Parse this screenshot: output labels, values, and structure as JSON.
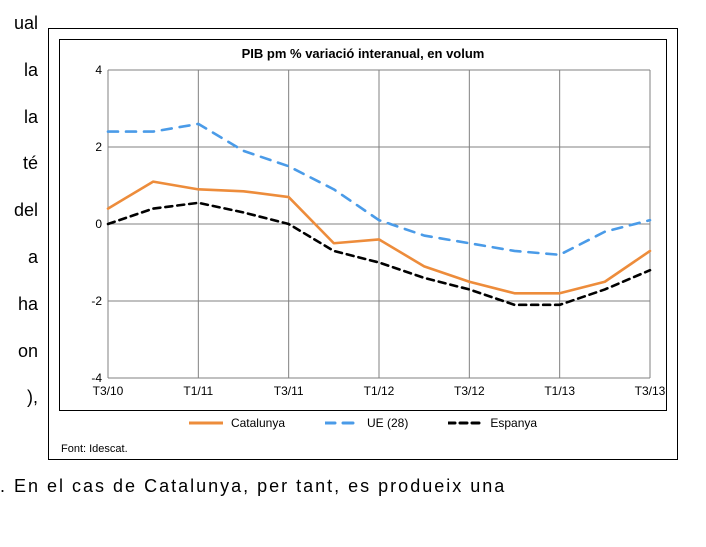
{
  "side_text": {
    "l1": "ual",
    "l2": "la",
    "l3": "la",
    "l4": "té",
    "l5": "del",
    "l6": "",
    "l7": "a",
    "l8": "ha",
    "l9": "on",
    "l10": "),"
  },
  "bottom_text": ".  En  el  cas  de  Catalunya,  per  tant,  es  produeix  una",
  "chart": {
    "type": "line",
    "title": "PIB pm % variació interanual, en volum",
    "title_fontsize": 13,
    "label_fontsize": 12,
    "background_color": "#ffffff",
    "border_color": "#000000",
    "grid_color": "#808080",
    "grid_width": 1,
    "line_width": 2,
    "y": {
      "min": -4,
      "max": 4,
      "ticks": [
        -4,
        -2,
        0,
        2,
        4
      ]
    },
    "x": {
      "labels": [
        "T3/10",
        "T1/11",
        "T3/11",
        "T1/12",
        "T3/12",
        "T1/13",
        "T3/13"
      ],
      "major_tick_every": 2,
      "count": 13
    },
    "series": [
      {
        "name": "Catalunya",
        "color": "#ed8c3b",
        "dash": [],
        "values": [
          0.4,
          1.1,
          0.9,
          0.85,
          0.7,
          -0.5,
          -0.4,
          -1.1,
          -1.5,
          -1.8,
          -1.8,
          -1.5,
          -0.7
        ]
      },
      {
        "name": "UE (28)",
        "color": "#4a9be8",
        "dash": [
          10,
          8
        ],
        "values": [
          2.4,
          2.4,
          2.6,
          1.9,
          1.5,
          0.9,
          0.1,
          -0.3,
          -0.5,
          -0.7,
          -0.8,
          -0.2,
          0.1
        ]
      },
      {
        "name": "Espanya",
        "color": "#000000",
        "dash": [
          7,
          5
        ],
        "values": [
          0.0,
          0.4,
          0.55,
          0.3,
          0.0,
          -0.7,
          -1.0,
          -1.4,
          -1.7,
          -2.1,
          -2.1,
          -1.7,
          -1.2
        ]
      }
    ],
    "legend_order": [
      0,
      1,
      2
    ],
    "source": "Font: Idescat."
  }
}
